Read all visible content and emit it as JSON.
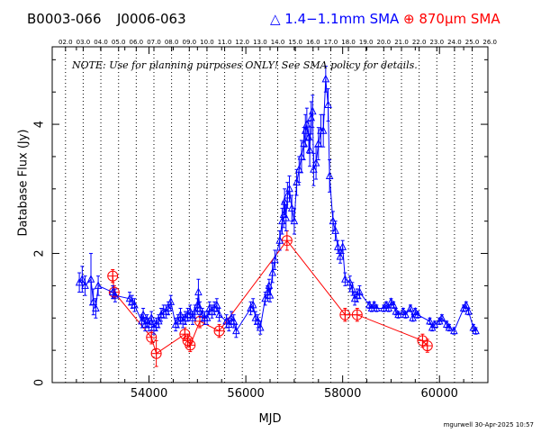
{
  "header": {
    "source_primary": "B0003-066",
    "source_alias": "J0006-063",
    "legend_blue": "△ 1.4−1.1mm SMA",
    "legend_red": "⊕ 870μm SMA",
    "note": "NOTE: Use for planning purposes ONLY!  See SMA policy for details.",
    "footer": "mgurwell 30-Apr-2025 10:57"
  },
  "colors": {
    "blue": "#0000ff",
    "red": "#ff0000",
    "axis": "#000000"
  },
  "chart_data": {
    "type": "scatter",
    "title": "",
    "xlabel": "MJD",
    "ylabel": "Database Flux (Jy)",
    "xlim": [
      52000,
      61000
    ],
    "ylim": [
      0,
      5.2
    ],
    "x_ticks": [
      54000,
      56000,
      58000,
      60000
    ],
    "y_ticks": [
      0,
      2,
      4
    ],
    "top_axis_labels": [
      "02.0",
      "03.0",
      "04.0",
      "05.0",
      "06.0",
      "07.0",
      "08.0",
      "09.0",
      "10.0",
      "11.0",
      "12.0",
      "13.0",
      "14.0",
      "15.0",
      "16.0",
      "17.0",
      "18.0",
      "19.0",
      "20.0",
      "21.0",
      "22.0",
      "23.0",
      "24.0",
      "25.0",
      "26.0"
    ],
    "year_gridlines_mjd": [
      52275,
      52640,
      53005,
      53371,
      53736,
      54101,
      54466,
      54832,
      55197,
      55562,
      55927,
      56293,
      56658,
      57023,
      57388,
      57754,
      58119,
      58484,
      58849,
      59215,
      59580,
      59945,
      60310,
      60676
    ],
    "grid": "dotted vertical year lines",
    "series": [
      {
        "name": "1.4−1.1mm SMA",
        "color": "#0000ff",
        "marker": "triangle",
        "points": [
          [
            52560,
            1.55,
            0.15
          ],
          [
            52620,
            1.6,
            0.2
          ],
          [
            52680,
            1.5,
            0.15
          ],
          [
            52800,
            1.6,
            0.4
          ],
          [
            52850,
            1.25,
            0.2
          ],
          [
            52900,
            1.15,
            0.15
          ],
          [
            52950,
            1.5,
            0.15
          ],
          [
            53250,
            1.4,
            0.1
          ],
          [
            53300,
            1.35,
            0.1
          ],
          [
            53600,
            1.3,
            0.1
          ],
          [
            53650,
            1.25,
            0.1
          ],
          [
            53700,
            1.2,
            0.1
          ],
          [
            53850,
            0.95,
            0.1
          ],
          [
            53880,
            1.05,
            0.1
          ],
          [
            53920,
            0.9,
            0.1
          ],
          [
            53960,
            0.95,
            0.1
          ],
          [
            54000,
            0.9,
            0.1
          ],
          [
            54050,
            1.0,
            0.1
          ],
          [
            54100,
            0.85,
            0.1
          ],
          [
            54150,
            0.9,
            0.1
          ],
          [
            54200,
            0.95,
            0.1
          ],
          [
            54250,
            1.05,
            0.1
          ],
          [
            54300,
            1.1,
            0.1
          ],
          [
            54350,
            1.1,
            0.1
          ],
          [
            54400,
            1.15,
            0.1
          ],
          [
            54450,
            1.25,
            0.1
          ],
          [
            54550,
            0.9,
            0.1
          ],
          [
            54600,
            0.95,
            0.1
          ],
          [
            54650,
            1.05,
            0.1
          ],
          [
            54700,
            0.95,
            0.1
          ],
          [
            54750,
            1.0,
            0.1
          ],
          [
            54800,
            1.05,
            0.1
          ],
          [
            54850,
            1.1,
            0.1
          ],
          [
            54900,
            1.0,
            0.1
          ],
          [
            54950,
            1.1,
            0.1
          ],
          [
            55000,
            1.2,
            0.1
          ],
          [
            55020,
            1.4,
            0.2
          ],
          [
            55050,
            1.15,
            0.1
          ],
          [
            55100,
            1.05,
            0.1
          ],
          [
            55150,
            1.0,
            0.1
          ],
          [
            55200,
            1.0,
            0.1
          ],
          [
            55250,
            1.15,
            0.1
          ],
          [
            55300,
            1.1,
            0.1
          ],
          [
            55350,
            1.15,
            0.1
          ],
          [
            55400,
            1.2,
            0.1
          ],
          [
            55450,
            1.05,
            0.1
          ],
          [
            55600,
            0.95,
            0.1
          ],
          [
            55650,
            0.9,
            0.1
          ],
          [
            55700,
            1.0,
            0.1
          ],
          [
            55750,
            0.95,
            0.1
          ],
          [
            55800,
            0.8,
            0.1
          ],
          [
            56100,
            1.15,
            0.1
          ],
          [
            56150,
            1.2,
            0.1
          ],
          [
            56200,
            1.0,
            0.1
          ],
          [
            56250,
            0.95,
            0.1
          ],
          [
            56300,
            0.85,
            0.1
          ],
          [
            56400,
            1.3,
            0.1
          ],
          [
            56450,
            1.4,
            0.1
          ],
          [
            56480,
            1.5,
            0.1
          ],
          [
            56500,
            1.35,
            0.1
          ],
          [
            56550,
            1.7,
            0.15
          ],
          [
            56600,
            1.9,
            0.15
          ],
          [
            56700,
            2.2,
            0.15
          ],
          [
            56750,
            2.5,
            0.2
          ],
          [
            56780,
            2.6,
            0.2
          ],
          [
            56800,
            2.8,
            0.2
          ],
          [
            56830,
            2.55,
            0.2
          ],
          [
            56860,
            2.9,
            0.2
          ],
          [
            56900,
            3.0,
            0.2
          ],
          [
            56950,
            2.7,
            0.2
          ],
          [
            57000,
            2.5,
            0.2
          ],
          [
            57050,
            3.1,
            0.2
          ],
          [
            57100,
            3.3,
            0.2
          ],
          [
            57150,
            3.5,
            0.25
          ],
          [
            57200,
            3.7,
            0.25
          ],
          [
            57230,
            3.9,
            0.25
          ],
          [
            57260,
            4.0,
            0.25
          ],
          [
            57300,
            3.8,
            0.25
          ],
          [
            57320,
            3.6,
            0.25
          ],
          [
            57350,
            4.1,
            0.25
          ],
          [
            57380,
            4.2,
            0.25
          ],
          [
            57400,
            3.3,
            0.25
          ],
          [
            57450,
            3.4,
            0.25
          ],
          [
            57500,
            3.7,
            0.25
          ],
          [
            57550,
            3.9,
            0.25
          ],
          [
            57600,
            3.9,
            0.25
          ],
          [
            57650,
            4.7,
            0.2
          ],
          [
            57700,
            4.3,
            0.25
          ],
          [
            57730,
            3.2,
            0.25
          ],
          [
            57800,
            2.5,
            0.15
          ],
          [
            57850,
            2.35,
            0.15
          ],
          [
            57900,
            2.1,
            0.1
          ],
          [
            57950,
            1.95,
            0.1
          ],
          [
            58000,
            2.1,
            0.1
          ],
          [
            58050,
            1.6,
            0.1
          ],
          [
            58150,
            1.55,
            0.1
          ],
          [
            58200,
            1.45,
            0.1
          ],
          [
            58250,
            1.3,
            0.1
          ],
          [
            58300,
            1.35,
            0.1
          ],
          [
            58350,
            1.4,
            0.1
          ],
          [
            58550,
            1.2,
            0.05
          ],
          [
            58600,
            1.15,
            0.05
          ],
          [
            58650,
            1.2,
            0.05
          ],
          [
            58700,
            1.15,
            0.05
          ],
          [
            58850,
            1.15,
            0.05
          ],
          [
            58900,
            1.2,
            0.05
          ],
          [
            58950,
            1.15,
            0.05
          ],
          [
            59000,
            1.25,
            0.05
          ],
          [
            59050,
            1.2,
            0.05
          ],
          [
            59100,
            1.1,
            0.05
          ],
          [
            59150,
            1.05,
            0.05
          ],
          [
            59250,
            1.1,
            0.05
          ],
          [
            59300,
            1.05,
            0.05
          ],
          [
            59400,
            1.15,
            0.05
          ],
          [
            59450,
            1.0,
            0.05
          ],
          [
            59500,
            1.1,
            0.05
          ],
          [
            59550,
            1.05,
            0.05
          ],
          [
            59800,
            0.95,
            0.05
          ],
          [
            59850,
            0.85,
            0.05
          ],
          [
            59900,
            0.9,
            0.05
          ],
          [
            60000,
            0.95,
            0.05
          ],
          [
            60050,
            1.0,
            0.05
          ],
          [
            60150,
            0.9,
            0.05
          ],
          [
            60200,
            0.85,
            0.05
          ],
          [
            60300,
            0.8,
            0.05
          ],
          [
            60500,
            1.15,
            0.05
          ],
          [
            60550,
            1.2,
            0.05
          ],
          [
            60600,
            1.1,
            0.05
          ],
          [
            60700,
            0.85,
            0.05
          ],
          [
            60750,
            0.8,
            0.05
          ]
        ]
      },
      {
        "name": "870μm SMA",
        "color": "#ff0000",
        "marker": "circle-plus",
        "points": [
          [
            53250,
            1.65,
            0.1
          ],
          [
            53280,
            1.4,
            0.1
          ],
          [
            54050,
            0.7,
            0.1
          ],
          [
            54150,
            0.45,
            0.2
          ],
          [
            54740,
            0.75,
            0.1
          ],
          [
            54800,
            0.65,
            0.1
          ],
          [
            54850,
            0.58,
            0.1
          ],
          [
            55050,
            0.95,
            0.1
          ],
          [
            55450,
            0.8,
            0.1
          ],
          [
            56850,
            2.2,
            0.15
          ],
          [
            58050,
            1.05,
            0.1
          ],
          [
            58300,
            1.05,
            0.1
          ],
          [
            59650,
            0.65,
            0.1
          ],
          [
            59750,
            0.57,
            0.1
          ]
        ]
      }
    ]
  }
}
